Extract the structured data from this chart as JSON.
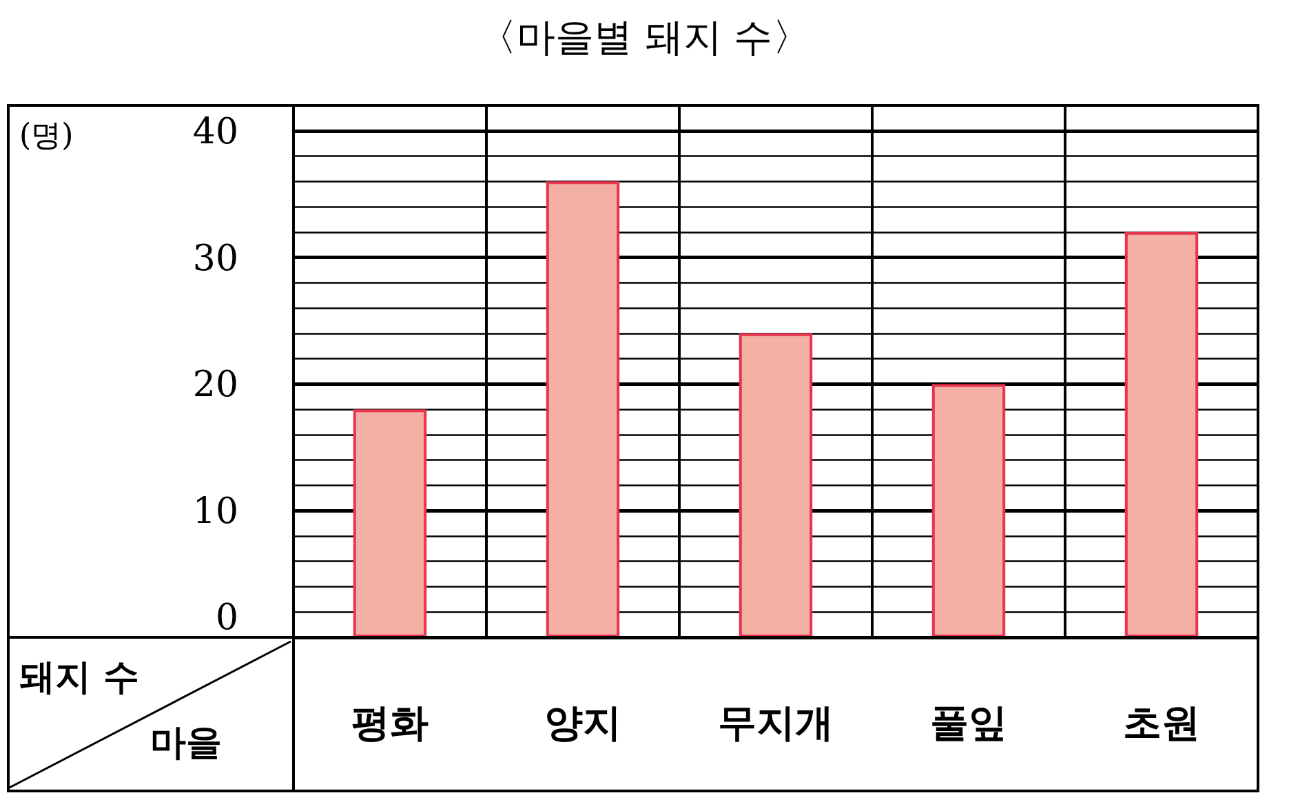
{
  "chart_data": {
    "type": "bar",
    "title": "〈마을별 돼지 수〉",
    "ylabel": "(명)",
    "xlabel": "마을",
    "annotations": [
      "돼지 수"
    ],
    "categories": [
      "평화",
      "양지",
      "무지개",
      "풀잎",
      "초원"
    ],
    "values": [
      18,
      36,
      24,
      20,
      32
    ],
    "color": "#f5b0a5",
    "ylim": [
      0,
      42
    ],
    "yticks": [
      0,
      10,
      20,
      30,
      40
    ],
    "grid": true
  }
}
